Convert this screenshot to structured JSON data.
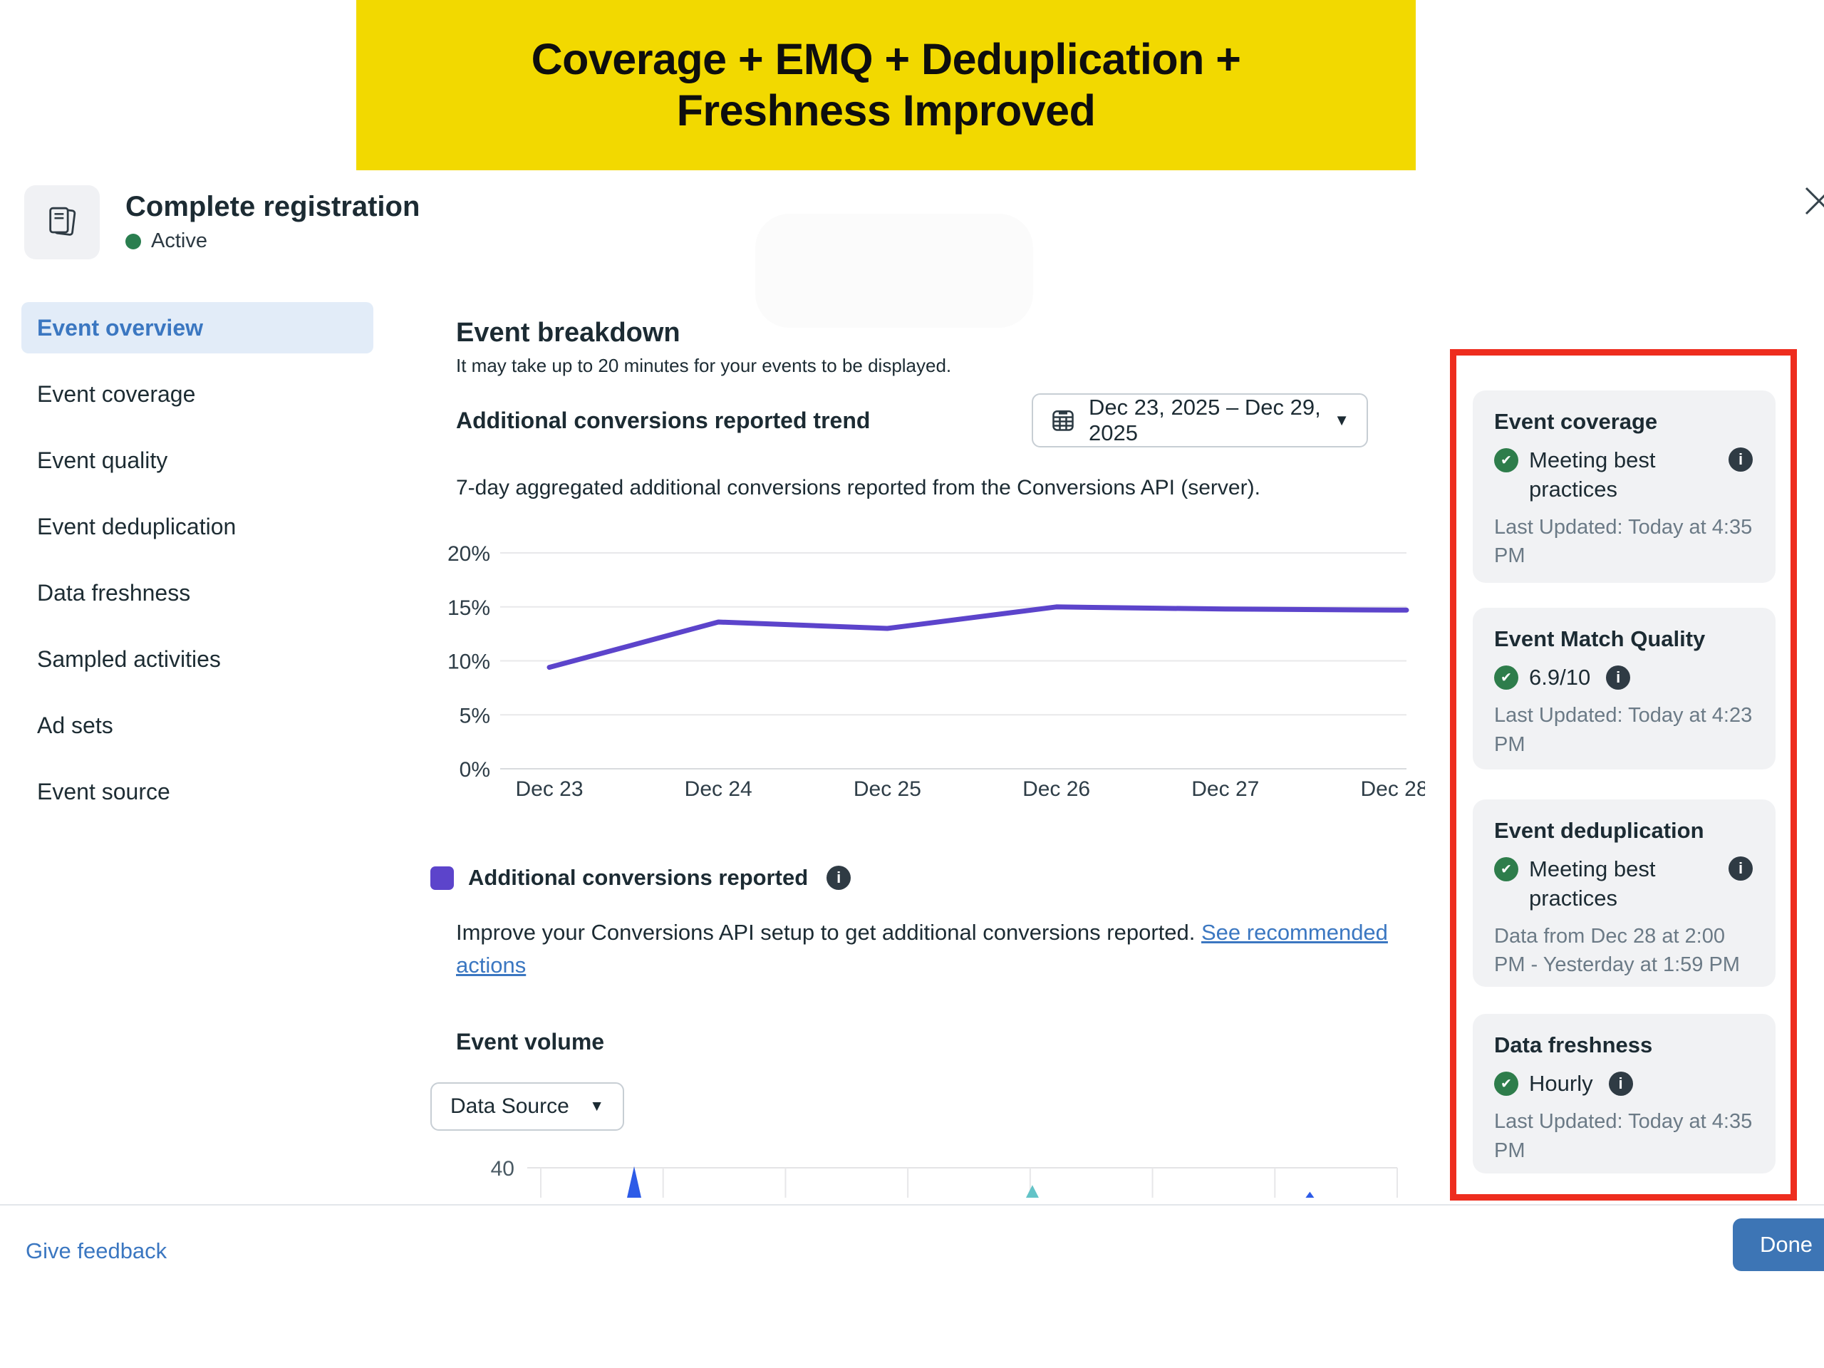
{
  "banner": {
    "line1": "Coverage + EMQ + Deduplication +",
    "line2": "Freshness Improved",
    "bg_color": "#F2D900"
  },
  "header": {
    "title": "Complete registration",
    "status": "Active"
  },
  "sidebar": {
    "items": [
      {
        "label": "Event overview",
        "active": true
      },
      {
        "label": "Event coverage",
        "active": false
      },
      {
        "label": "Event quality",
        "active": false
      },
      {
        "label": "Event deduplication",
        "active": false
      },
      {
        "label": "Data freshness",
        "active": false
      },
      {
        "label": "Sampled activities",
        "active": false
      },
      {
        "label": "Ad sets",
        "active": false
      },
      {
        "label": "Event source",
        "active": false
      }
    ]
  },
  "main": {
    "section_title": "Event breakdown",
    "section_subtitle": "It may take up to 20 minutes for your events to be displayed.",
    "trend_title": "Additional conversions reported trend",
    "date_range": "Dec 23, 2025 – Dec 29, 2025",
    "trend_description": "7-day aggregated additional conversions reported from the Conversions API (server).",
    "legend_label": "Additional conversions reported",
    "improve_text": "Improve your Conversions API setup to get additional conversions reported.",
    "improve_link": "See recommended actions",
    "volume_title": "Event volume",
    "volume_filter_label": "Data Source"
  },
  "cards": [
    {
      "title": "Event coverage",
      "status": "Meeting best practices",
      "caption": "Last Updated: Today at 4:35 PM"
    },
    {
      "title": "Event Match Quality",
      "status": "6.9/10",
      "caption": "Last Updated: Today at 4:23 PM"
    },
    {
      "title": "Event deduplication",
      "status": "Meeting best practices",
      "caption": "Data from Dec 28 at 2:00 PM - Yesterday at 1:59 PM"
    },
    {
      "title": "Data freshness",
      "status": "Hourly",
      "caption": "Last Updated: Today at 4:35 PM"
    }
  ],
  "footer": {
    "feedback_link": "Give feedback",
    "done_button": "Done"
  },
  "colors": {
    "accent_blue": "#3b77c1",
    "line_purple": "#5c44cb",
    "red_annotation": "#ee2d1e",
    "done_blue": "#3d75b5",
    "green_check": "#2e7d4b",
    "card_bg": "#f1f2f4",
    "active_pill_bg": "#e2ecf8",
    "banner_yellow": "#F2D900"
  },
  "chart_data": [
    {
      "type": "line",
      "title": "Additional conversions reported trend",
      "x": [
        "Dec 23",
        "Dec 24",
        "Dec 25",
        "Dec 26",
        "Dec 27",
        "Dec 28"
      ],
      "series": [
        {
          "name": "Additional conversions reported",
          "values": [
            9.4,
            13.6,
            13.0,
            15.0,
            14.8,
            14.7
          ],
          "color": "#5c44cb"
        }
      ],
      "unit": "%",
      "ylim": [
        0,
        20
      ],
      "yticks": [
        0,
        5,
        10,
        15,
        20
      ],
      "grid": true,
      "legend_position": "bottom"
    },
    {
      "type": "bar",
      "title": "Event volume",
      "ylim": [
        0,
        40
      ],
      "ytick_label": "40",
      "bars": [
        {
          "x_frac": 0.109,
          "value": 42,
          "color": "#2d5be7"
        },
        {
          "x_frac": 0.574,
          "value": 17,
          "color": "#63c3c7"
        },
        {
          "x_frac": 0.898,
          "value": 8,
          "color": "#2d5be7"
        }
      ]
    }
  ]
}
